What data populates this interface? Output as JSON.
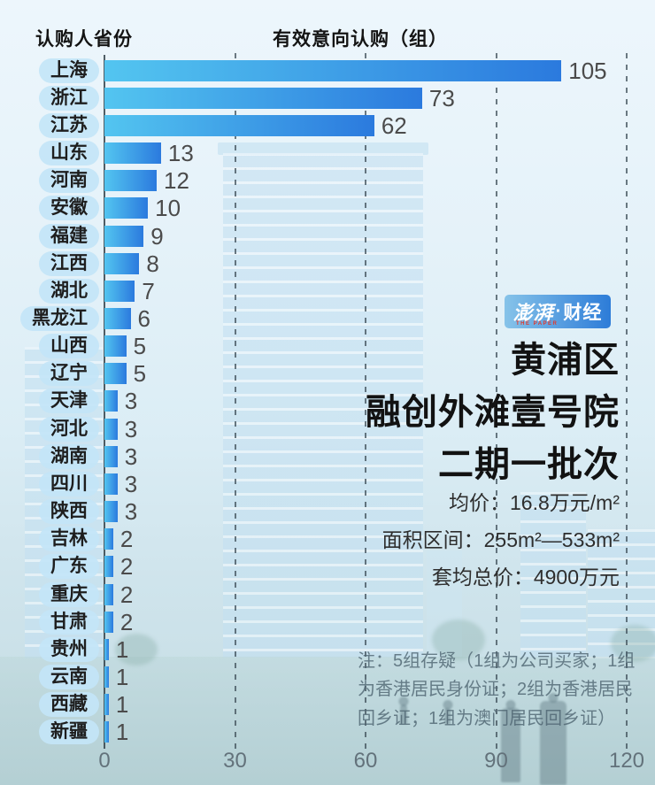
{
  "header": {
    "left": "认购人省份",
    "right": "有效意向认购（组）"
  },
  "chart_data": {
    "type": "bar",
    "orientation": "horizontal",
    "title": "有效意向认购（组）",
    "ylabel": "认购人省份",
    "categories": [
      "上海",
      "浙江",
      "江苏",
      "山东",
      "河南",
      "安徽",
      "福建",
      "江西",
      "湖北",
      "黑龙江",
      "山西",
      "辽宁",
      "天津",
      "河北",
      "湖南",
      "四川",
      "陕西",
      "吉林",
      "广东",
      "重庆",
      "甘肃",
      "贵州",
      "云南",
      "西藏",
      "新疆"
    ],
    "values": [
      105,
      73,
      62,
      13,
      12,
      10,
      9,
      8,
      7,
      6,
      5,
      5,
      3,
      3,
      3,
      3,
      3,
      2,
      2,
      2,
      2,
      1,
      1,
      1,
      1
    ],
    "x_ticks": [
      0,
      30,
      60,
      90,
      120
    ],
    "xlim": [
      0,
      120
    ],
    "grid": "dashed vertical gridlines at 30/60/90/120",
    "legend": "none",
    "bar_gradient": [
      "#53c5f0",
      "#2b7ade"
    ]
  },
  "logo": {
    "brand_script": "澎湃",
    "brand_dot": "·",
    "brand_suffix": "财经",
    "subtext": "THE PAPER"
  },
  "info": {
    "title_lines": [
      "黄浦区",
      "融创外滩壹号院",
      "二期一批次"
    ],
    "details": [
      "均价：16.8万元/m²",
      "面积区间：255m²—533m²",
      "套均总价：4900万元"
    ],
    "note": "注：5组存疑（1组为公司买家；1组为香港居民身份证；2组为香港居民回乡证；1组为澳门居民回乡证）"
  },
  "colors": {
    "bar_start": "#53c5f0",
    "bar_end": "#2b7ade",
    "pill_bg": "#c3e5f7",
    "value_text": "#4b4b4b",
    "note_text": "#4e6470",
    "background": "#e5f2f9",
    "logo_gradient": [
      "#86c3e9",
      "#2d7cd8"
    ],
    "logo_subtext": "#e0392f"
  }
}
